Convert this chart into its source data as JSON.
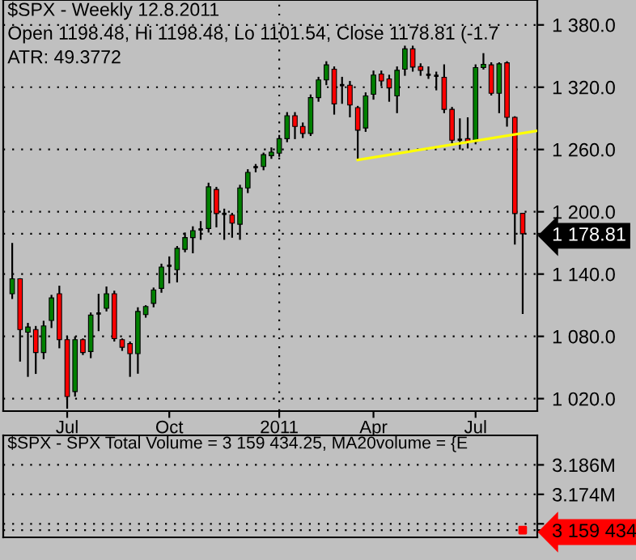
{
  "chart_data": [
    {
      "type": "candlestick",
      "title": "$SPX - Weekly 12.8.2011",
      "subtitle": "Open 1198.48, Hi 1198.48, Lo 1101.54, Close 1178.81 (-1.7",
      "annotations": [
        "ATR: 49.3772"
      ],
      "x": [
        "2010-05-14",
        "2010-05-21",
        "2010-05-28",
        "2010-06-04",
        "2010-06-11",
        "2010-06-18",
        "2010-06-25",
        "2010-07-02",
        "2010-07-09",
        "2010-07-16",
        "2010-07-23",
        "2010-07-30",
        "2010-08-06",
        "2010-08-13",
        "2010-08-20",
        "2010-08-27",
        "2010-09-03",
        "2010-09-10",
        "2010-09-17",
        "2010-09-24",
        "2010-10-01",
        "2010-10-08",
        "2010-10-15",
        "2010-10-22",
        "2010-10-29",
        "2010-11-05",
        "2010-11-12",
        "2010-11-19",
        "2010-11-26",
        "2010-12-03",
        "2010-12-10",
        "2010-12-17",
        "2010-12-24",
        "2010-12-31",
        "2011-01-07",
        "2011-01-14",
        "2011-01-21",
        "2011-01-28",
        "2011-02-04",
        "2011-02-11",
        "2011-02-18",
        "2011-02-25",
        "2011-03-04",
        "2011-03-11",
        "2011-03-18",
        "2011-03-25",
        "2011-04-01",
        "2011-04-08",
        "2011-04-15",
        "2011-04-22",
        "2011-04-29",
        "2011-05-06",
        "2011-05-13",
        "2011-05-20",
        "2011-05-27",
        "2011-06-03",
        "2011-06-10",
        "2011-06-17",
        "2011-06-24",
        "2011-07-01",
        "2011-07-08",
        "2011-07-15",
        "2011-07-22",
        "2011-07-29",
        "2011-08-05",
        "2011-08-12"
      ],
      "ohlc": [
        [
          1121,
          1170,
          1116,
          1135.5
        ],
        [
          1135.5,
          1136,
          1055.7,
          1086.5
        ],
        [
          1084,
          1093,
          1041,
          1089
        ],
        [
          1086.5,
          1090,
          1043.8,
          1064.4
        ],
        [
          1064.4,
          1095,
          1058,
          1090
        ],
        [
          1095.3,
          1120,
          1088,
          1117
        ],
        [
          1121,
          1128.8,
          1068.5,
          1076.8
        ],
        [
          1076.8,
          1080,
          1010.3,
          1022
        ],
        [
          1026.8,
          1080,
          1022,
          1076.8
        ],
        [
          1076.8,
          1078,
          1062,
          1064.4
        ],
        [
          1065.4,
          1103,
          1059,
          1100.5
        ],
        [
          1102,
          1121,
          1085,
          1102
        ],
        [
          1107,
          1128,
          1104,
          1121
        ],
        [
          1121,
          1124,
          1075,
          1077.8
        ],
        [
          1076.8,
          1078,
          1066,
          1069.5
        ],
        [
          1073,
          1075,
          1041,
          1063.4
        ],
        [
          1063.4,
          1108,
          1044,
          1104
        ],
        [
          1101,
          1110,
          1098,
          1108.7
        ],
        [
          1111.8,
          1127,
          1108,
          1124.7
        ],
        [
          1126.2,
          1150,
          1122,
          1146.8
        ],
        [
          1148,
          1157,
          1131,
          1148
        ],
        [
          1144.2,
          1167,
          1132,
          1164.8
        ],
        [
          1163.8,
          1180,
          1161,
          1175.1
        ],
        [
          1175.1,
          1186,
          1160,
          1181.8
        ],
        [
          1183,
          1191,
          1173,
          1183
        ],
        [
          1183.9,
          1228,
          1180,
          1224
        ],
        [
          1221.5,
          1224,
          1185,
          1198.3
        ],
        [
          1198,
          1203,
          1173,
          1198
        ],
        [
          1196.8,
          1199,
          1175,
          1189
        ],
        [
          1188,
          1226,
          1173,
          1223
        ],
        [
          1223,
          1241,
          1218,
          1238
        ],
        [
          1243,
          1246,
          1238,
          1243
        ],
        [
          1243.6,
          1257,
          1240,
          1255
        ],
        [
          1254,
          1262,
          1251,
          1257.5
        ],
        [
          1256.5,
          1274,
          1253,
          1270.4
        ],
        [
          1270.4,
          1296,
          1267,
          1292.5
        ],
        [
          1292.5,
          1296,
          1270,
          1282.2
        ],
        [
          1282.2,
          1286,
          1271,
          1275.5
        ],
        [
          1275.5,
          1313,
          1273,
          1310
        ],
        [
          1310,
          1330,
          1306,
          1327
        ],
        [
          1327,
          1345,
          1322,
          1341.5
        ],
        [
          1337.3,
          1340,
          1293.6,
          1303.9
        ],
        [
          1322,
          1330,
          1304,
          1322
        ],
        [
          1322,
          1326,
          1291,
          1302.9
        ],
        [
          1300.3,
          1302,
          1249.8,
          1278.6
        ],
        [
          1280.7,
          1315,
          1277,
          1311.6
        ],
        [
          1313.2,
          1336,
          1308,
          1331.7
        ],
        [
          1332.7,
          1336,
          1321,
          1326
        ],
        [
          1328,
          1332,
          1306,
          1319.3
        ],
        [
          1311.6,
          1340,
          1295,
          1336.3
        ],
        [
          1337.3,
          1360,
          1331,
          1356.9
        ],
        [
          1356.9,
          1360,
          1335,
          1339.4
        ],
        [
          1339.9,
          1343,
          1331,
          1336.3
        ],
        [
          1332,
          1340,
          1328,
          1332
        ],
        [
          1331,
          1335,
          1317,
          1331
        ],
        [
          1329.6,
          1342,
          1295,
          1298.7
        ],
        [
          1298.7,
          1301,
          1266,
          1268.9
        ],
        [
          1269.4,
          1290,
          1260,
          1269.4
        ],
        [
          1270.4,
          1291,
          1261,
          1267.8
        ],
        [
          1267.8,
          1342,
          1265,
          1338.9
        ],
        [
          1338.9,
          1352.8,
          1337,
          1342
        ],
        [
          1341.5,
          1344,
          1312,
          1314.2
        ],
        [
          1314.2,
          1344,
          1295,
          1342.5
        ],
        [
          1343.5,
          1345,
          1282,
          1291
        ],
        [
          1291,
          1292,
          1168.4,
          1198.3
        ],
        [
          1198.48,
          1198.48,
          1101.54,
          1178.81
        ]
      ],
      "colors": [
        "#008000",
        "#ff0000",
        "#008000",
        "#ff0000",
        "#008000",
        "#008000",
        "#ff0000",
        "#ff0000",
        "#008000",
        "#ff0000",
        "#008000",
        "#000000",
        "#008000",
        "#ff0000",
        "#ff0000",
        "#ff0000",
        "#008000",
        "#008000",
        "#008000",
        "#008000",
        "#000000",
        "#008000",
        "#008000",
        "#008000",
        "#000000",
        "#008000",
        "#ff0000",
        "#000000",
        "#ff0000",
        "#008000",
        "#008000",
        "#000000",
        "#008000",
        "#008000",
        "#008000",
        "#008000",
        "#ff0000",
        "#ff0000",
        "#008000",
        "#008000",
        "#008000",
        "#ff0000",
        "#000000",
        "#ff0000",
        "#ff0000",
        "#008000",
        "#008000",
        "#ff0000",
        "#ff0000",
        "#008000",
        "#008000",
        "#ff0000",
        "#ff0000",
        "#000000",
        "#000000",
        "#ff0000",
        "#ff0000",
        "#000000",
        "#ff0000",
        "#008000",
        "#008000",
        "#ff0000",
        "#008000",
        "#ff0000",
        "#ff0000",
        "#ff0000"
      ],
      "series": [
        {
          "type": "line",
          "x": [
            "2011-03-18",
            "2011-08-25"
          ],
          "values": [
            1250,
            1278
          ],
          "color": "#ffff00"
        }
      ],
      "xlim": [
        "2010-05-06",
        "2011-08-25"
      ],
      "xticks": [
        {
          "value": "2010-07-02",
          "label": "Jul"
        },
        {
          "value": "2010-10-01",
          "label": "Oct"
        },
        {
          "value": "2011-01-07",
          "label": "2011"
        },
        {
          "value": "2011-04-01",
          "label": "Apr"
        },
        {
          "value": "2011-07-01",
          "label": "Jul"
        }
      ],
      "ylim": [
        1008,
        1404
      ],
      "yticks": [
        {
          "value": 1020,
          "label": "1 020.0"
        },
        {
          "value": 1080,
          "label": "1 080.0"
        },
        {
          "value": 1140,
          "label": "1 140.0"
        },
        {
          "value": 1178.81,
          "label": "1 178.81"
        },
        {
          "value": 1200,
          "label": "1 200.0"
        },
        {
          "value": 1260,
          "label": "1 260.0"
        },
        {
          "value": 1320,
          "label": "1 320.0"
        },
        {
          "value": 1380,
          "label": "1 380.0"
        }
      ],
      "ref_lines": [
        {
          "axis": "x",
          "value": "2011-01-07",
          "color": "#000000",
          "line_style": "dotted"
        }
      ],
      "grid": "y"
    },
    {
      "type": "scatter",
      "title": "$SPX - SPX Total Volume = 3 159 434.25, MA20volume = {E",
      "series": [
        {
          "x": [
            "2011-08-12"
          ],
          "values": [
            3159434.25
          ],
          "color": "#ff0000"
        }
      ],
      "marker": "square",
      "xlim": [
        "2010-05-06",
        "2011-08-25"
      ],
      "ylim": [
        3156500,
        3198000
      ],
      "yticks": [
        {
          "value": 3159434.25,
          "label": "3 159 434"
        },
        {
          "value": 3162000,
          "label": null
        },
        {
          "value": 3174000,
          "label": "3.174M"
        },
        {
          "value": 3186000,
          "label": "3.186M"
        }
      ],
      "grid": "y",
      "tick_labels": "y"
    }
  ]
}
